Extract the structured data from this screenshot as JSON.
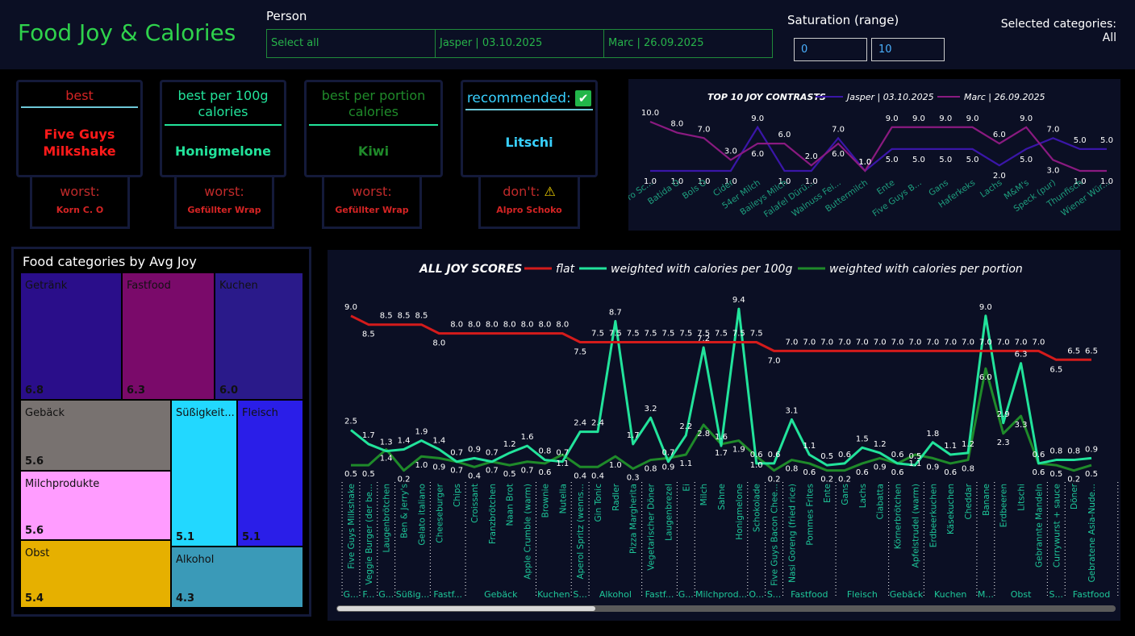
{
  "header": {
    "title": "Food Joy & Calories",
    "person_label": "Person",
    "person_options": [
      "Select all",
      "Jasper | 03.10.2025",
      "Marc | 26.09.2025"
    ],
    "saturation_label": "Saturation (range)",
    "saturation_min": "0",
    "saturation_max": "10",
    "selected_categories_label": "Selected categories:",
    "selected_categories_value": "All"
  },
  "cards": [
    {
      "head": "best",
      "value": "Five Guys Milkshake",
      "sub_head": "worst:",
      "sub_value": "Korn C. O"
    },
    {
      "head": "best per 100g calories",
      "value": "Honigmelone",
      "sub_head": "worst:",
      "sub_value": "Gefüllter Wrap"
    },
    {
      "head": "best per portion calories",
      "value": "Kiwi",
      "sub_head": "worst:",
      "sub_value": "Gefüllter Wrap"
    },
    {
      "head": "recommended:",
      "value": "Litschi",
      "sub_head": "don't:",
      "sub_value": "Alpro Schoko"
    }
  ],
  "colors": {
    "accent_green": "#2fd24c",
    "flat": "#d41b1b",
    "per100g": "#22e39b",
    "perportion": "#1f8a2a",
    "jasper": "#3a16a8",
    "marc": "#8a1a80"
  },
  "treemap": {
    "title": "Food categories by Avg Joy",
    "tiles": [
      {
        "name": "Getränk",
        "value": "6.8",
        "color": "#2a0e8a"
      },
      {
        "name": "Fastfood",
        "value": "6.3",
        "color": "#7a0a6a"
      },
      {
        "name": "Kuchen",
        "value": "6.0",
        "color": "#2a1a8a"
      },
      {
        "name": "Gebäck",
        "value": "5.6",
        "color": "#787270"
      },
      {
        "name": "Süßigkeit...",
        "value": "5.1",
        "color": "#22d8ff"
      },
      {
        "name": "Fleisch",
        "value": "5.1",
        "color": "#2a1ee8"
      },
      {
        "name": "Milchprodukte",
        "value": "5.6",
        "color": "#ff9cff"
      },
      {
        "name": "Obst",
        "value": "5.4",
        "color": "#e6b000"
      },
      {
        "name": "Alkohol",
        "value": "4.3",
        "color": "#3a9ab8"
      }
    ]
  },
  "chart_data": [
    {
      "type": "line",
      "title": "TOP 10 JOY CONTRASTS",
      "categories": [
        "Alpro Sc...",
        "Batida O",
        "Bols O",
        "Cider",
        "54er Milch",
        "Baileys Milch",
        "Falafel Dürü...",
        "Walnuss Fei...",
        "Buttermilch",
        "Ente",
        "Five Guys B...",
        "Gans",
        "Haferkeks",
        "Lachs",
        "M&M's",
        "Speck (pur)",
        "Thunfisch",
        "Wiener Wür..."
      ],
      "series": [
        {
          "name": "Jasper | 03.10.2025",
          "values": [
            1.0,
            1.0,
            1.0,
            1.0,
            9.0,
            1.0,
            1.0,
            7.0,
            1.0,
            5.0,
            5.0,
            5.0,
            5.0,
            2.0,
            5.0,
            7.0,
            5.0,
            5.0
          ]
        },
        {
          "name": "Marc | 26.09.2025",
          "values": [
            10.0,
            8.0,
            7.0,
            3.0,
            6.0,
            6.0,
            2.0,
            6.0,
            1.0,
            9.0,
            9.0,
            9.0,
            9.0,
            6.0,
            9.0,
            3.0,
            1.0,
            1.0
          ]
        }
      ],
      "legend": "top",
      "ylim": [
        0,
        10
      ]
    },
    {
      "type": "line",
      "title": "ALL JOY SCORES",
      "categories": [
        "Five Guys Milkshake",
        "Veggie Burger (der be...",
        "Laugenbrötchen",
        "Ben & Jerry's",
        "Gelato italiano",
        "Cheeseburger",
        "Chips",
        "Croissant",
        "Franzbrötchen",
        "Naan Brot",
        "Apple Crumble (warm)",
        "Brownie",
        "Nutella",
        "Aperol Spritz (wenns...",
        "Gin Tonic",
        "Radler",
        "Pizza Margherita",
        "Vegetarischer Döner",
        "Laugenbrezel",
        "Ei",
        "Milch",
        "Sahne",
        "Honigmelone",
        "Schokolade",
        "Five Guys Bacon Chee...",
        "Nasi Goreng (fried rice)",
        "Pommes Frites",
        "Ente",
        "Gans",
        "Lachs",
        "Ciabatta",
        "Körnerbrötchen",
        "Apfelstrudel (warm)",
        "Erdbeerkuchen",
        "Käsekuchen",
        "Cheddar",
        "Banane",
        "Erdbeeren",
        "Litschi",
        "Gebrannte Mandeln",
        "Currywurst + sauce",
        "Döner",
        "Gebratene Asia-Nude..."
      ],
      "groups": [
        {
          "name": "G...",
          "count": 1
        },
        {
          "name": "F...",
          "count": 1
        },
        {
          "name": "G...",
          "count": 1
        },
        {
          "name": "Süßig...",
          "count": 2
        },
        {
          "name": "Fastf...",
          "count": 2
        },
        {
          "name": "Gebäck",
          "count": 4
        },
        {
          "name": "Kuchen",
          "count": 2
        },
        {
          "name": "S...",
          "count": 1
        },
        {
          "name": "Alkohol",
          "count": 3
        },
        {
          "name": "Fastf...",
          "count": 2
        },
        {
          "name": "G...",
          "count": 1
        },
        {
          "name": "Milchprod...",
          "count": 3
        },
        {
          "name": "O...",
          "count": 1
        },
        {
          "name": "S...",
          "count": 1
        },
        {
          "name": "Fastfood",
          "count": 3
        },
        {
          "name": "Fleisch",
          "count": 3
        },
        {
          "name": "Gebäck",
          "count": 2
        },
        {
          "name": "Kuchen",
          "count": 3
        },
        {
          "name": "M...",
          "count": 1
        },
        {
          "name": "Obst",
          "count": 3
        },
        {
          "name": "S...",
          "count": 1
        },
        {
          "name": "Fastfood",
          "count": 3
        }
      ],
      "series": [
        {
          "name": "flat",
          "values": [
            9.0,
            8.5,
            8.5,
            8.5,
            8.5,
            8.0,
            8.0,
            8.0,
            8.0,
            8.0,
            8.0,
            8.0,
            8.0,
            7.5,
            7.5,
            7.5,
            7.5,
            7.5,
            7.5,
            7.5,
            7.5,
            7.5,
            7.5,
            7.5,
            7.0,
            7.0,
            7.0,
            7.0,
            7.0,
            7.0,
            7.0,
            7.0,
            7.0,
            7.0,
            7.0,
            7.0,
            7.0,
            7.0,
            7.0,
            7.0,
            6.5,
            6.5,
            6.5
          ]
        },
        {
          "name": "weighted with calories per 100g",
          "values": [
            2.5,
            1.7,
            1.3,
            1.4,
            1.9,
            1.4,
            0.7,
            0.9,
            0.7,
            1.2,
            1.6,
            0.8,
            0.7,
            2.4,
            2.4,
            8.7,
            1.7,
            3.2,
            0.7,
            2.2,
            7.2,
            1.6,
            9.4,
            0.6,
            0.6,
            3.1,
            1.1,
            0.5,
            0.6,
            1.5,
            1.2,
            0.6,
            0.5,
            1.8,
            1.1,
            1.2,
            9.0,
            2.9,
            6.3,
            0.6,
            0.8,
            0.8,
            0.9
          ]
        },
        {
          "name": "weighted with calories per portion",
          "values": [
            0.5,
            0.5,
            1.4,
            0.2,
            1.0,
            0.9,
            0.7,
            0.4,
            0.7,
            0.5,
            0.7,
            0.6,
            1.1,
            0.4,
            0.4,
            1.0,
            0.3,
            0.8,
            0.9,
            1.1,
            2.8,
            1.7,
            1.9,
            1.0,
            0.2,
            0.8,
            0.6,
            0.2,
            0.2,
            0.6,
            0.9,
            0.6,
            1.1,
            0.9,
            0.6,
            0.8,
            6.0,
            2.3,
            3.3,
            0.6,
            0.5,
            0.2,
            0.5
          ]
        }
      ],
      "legend": "top",
      "ylim": [
        0,
        10
      ]
    }
  ]
}
